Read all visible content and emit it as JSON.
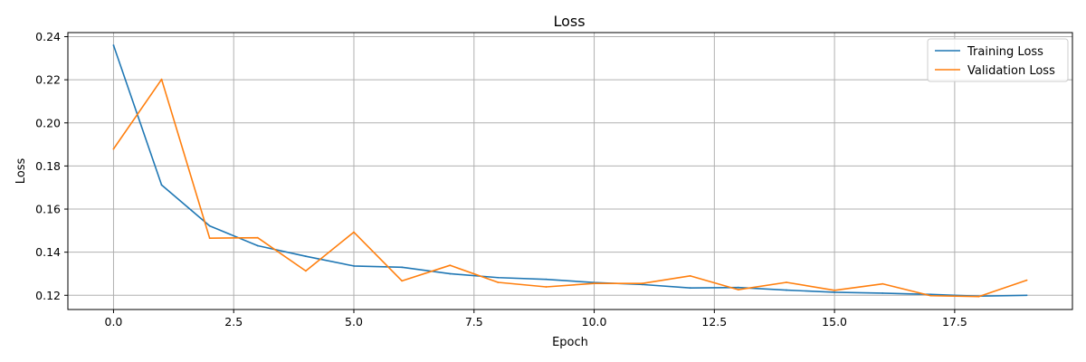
{
  "chart_data": {
    "type": "line",
    "title": "Loss",
    "xlabel": "Epoch",
    "ylabel": "Loss",
    "xlim": [
      -0.95,
      19.95
    ],
    "ylim": [
      0.1134,
      0.2419
    ],
    "grid": true,
    "legend_position": "top-right",
    "x_ticks": [
      0.0,
      2.5,
      5.0,
      7.5,
      10.0,
      12.5,
      15.0,
      17.5
    ],
    "x_tick_labels": [
      "0.0",
      "2.5",
      "5.0",
      "7.5",
      "10.0",
      "12.5",
      "15.0",
      "17.5"
    ],
    "y_ticks": [
      0.12,
      0.14,
      0.16,
      0.18,
      0.2,
      0.22,
      0.24
    ],
    "y_tick_labels": [
      "0.12",
      "0.14",
      "0.16",
      "0.18",
      "0.20",
      "0.22",
      "0.24"
    ],
    "x": [
      0,
      1,
      2,
      3,
      4,
      5,
      6,
      7,
      8,
      9,
      10,
      11,
      12,
      13,
      14,
      15,
      16,
      17,
      18,
      19
    ],
    "series": [
      {
        "name": "Training Loss",
        "color": "#1f77b4",
        "values": [
          0.236,
          0.1712,
          0.1522,
          0.143,
          0.1381,
          0.1336,
          0.133,
          0.13,
          0.1282,
          0.1274,
          0.1259,
          0.125,
          0.1234,
          0.1236,
          0.1224,
          0.1214,
          0.121,
          0.1204,
          0.1196,
          0.12
        ]
      },
      {
        "name": "Validation Loss",
        "color": "#ff7f0e",
        "values": [
          0.1879,
          0.2202,
          0.1465,
          0.1467,
          0.1313,
          0.1493,
          0.1267,
          0.1339,
          0.126,
          0.1239,
          0.1255,
          0.1255,
          0.129,
          0.1226,
          0.126,
          0.1223,
          0.1253,
          0.1198,
          0.1194,
          0.127
        ]
      }
    ]
  }
}
